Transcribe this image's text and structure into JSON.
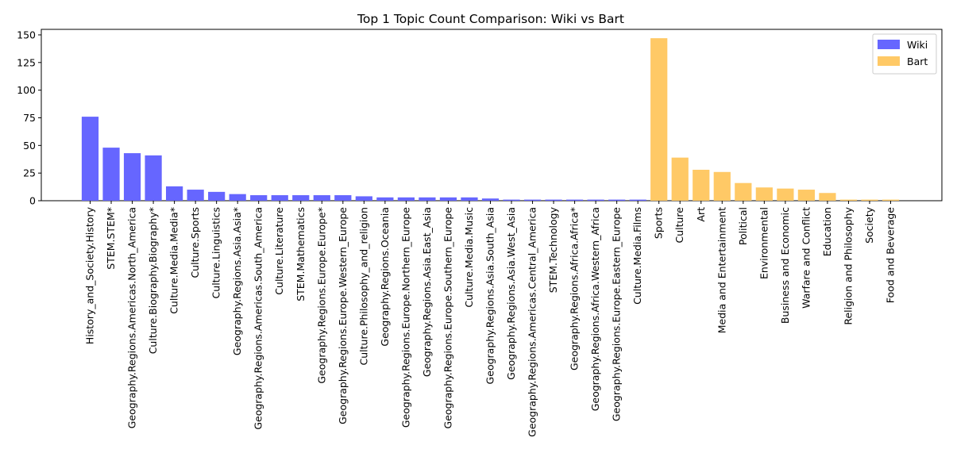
{
  "chart_data": {
    "type": "bar",
    "title": "Top 1 Topic Count Comparison: Wiki vs Bart",
    "xlabel": "",
    "ylabel": "",
    "ylim": [
      0,
      155
    ],
    "yticks": [
      0,
      25,
      50,
      75,
      100,
      125,
      150
    ],
    "grid": false,
    "legend_position": "top-right",
    "series": [
      {
        "name": "Wiki",
        "color": "#6666ff",
        "categories": [
          "History_and_Society.History",
          "STEM.STEM*",
          "Geography.Regions.Americas.North_America",
          "Culture.Biography.Biography*",
          "Culture.Media.Media*",
          "Culture.Sports",
          "Culture.Linguistics",
          "Geography.Regions.Asia.Asia*",
          "Geography.Regions.Americas.South_America",
          "Culture.Literature",
          "STEM.Mathematics",
          "Geography.Regions.Europe.Europe*",
          "Geography.Regions.Europe.Western_Europe",
          "Culture.Philosophy_and_religion",
          "Geography.Regions.Oceania",
          "Geography.Regions.Europe.Northern_Europe",
          "Geography.Regions.Asia.East_Asia",
          "Geography.Regions.Europe.Southern_Europe",
          "Culture.Media.Music",
          "Geography.Regions.Asia.South_Asia",
          "Geography.Regions.Asia.West_Asia",
          "Geography.Regions.Americas.Central_America",
          "STEM.Technology",
          "Geography.Regions.Africa.Africa*",
          "Geography.Regions.Africa.Western_Africa",
          "Geography.Regions.Europe.Eastern_Europe",
          "Culture.Media.Films"
        ],
        "values": [
          76,
          48,
          43,
          41,
          13,
          10,
          8,
          6,
          5,
          5,
          5,
          5,
          5,
          4,
          3,
          3,
          3,
          3,
          3,
          2,
          1,
          1,
          1,
          1,
          1,
          1,
          1
        ]
      },
      {
        "name": "Bart",
        "color": "#ffc966",
        "categories": [
          "Sports",
          "Culture",
          "Art",
          "Media and Entertainment",
          "Political",
          "Environmental",
          "Business and Economic",
          "Warfare and Conflict",
          "Education",
          "Religion and Philosophy",
          "Society",
          "Food and Beverage"
        ],
        "values": [
          147,
          39,
          28,
          26,
          16,
          12,
          11,
          10,
          7,
          1,
          1,
          1
        ]
      }
    ]
  }
}
